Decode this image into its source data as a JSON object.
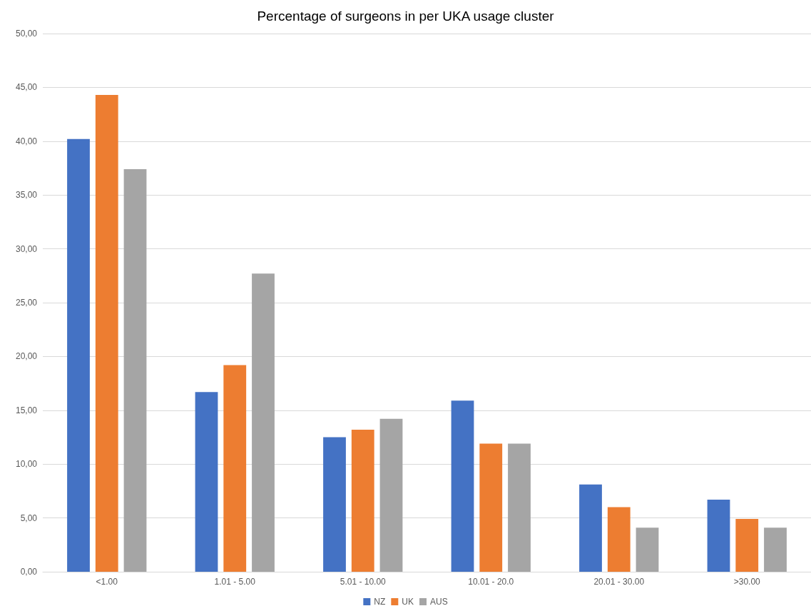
{
  "chart_data": {
    "type": "bar",
    "title": "Percentage of surgeons in per UKA usage cluster",
    "categories": [
      "<1.00",
      "1.01 - 5.00",
      "5.01 - 10.00",
      "10.01 - 20.0",
      "20.01 - 30.00",
      ">30.00"
    ],
    "series": [
      {
        "name": "NZ",
        "color": "#4472c4",
        "values": [
          40.2,
          16.7,
          12.5,
          15.9,
          8.1,
          6.7
        ]
      },
      {
        "name": "UK",
        "color": "#ed7d31",
        "values": [
          44.3,
          19.2,
          13.2,
          11.9,
          6.0,
          4.9
        ]
      },
      {
        "name": "AUS",
        "color": "#a5a5a5",
        "values": [
          37.4,
          27.7,
          14.2,
          11.9,
          4.1,
          4.1
        ]
      }
    ],
    "ylim": [
      0,
      50
    ],
    "yticks": [
      {
        "value": 0,
        "label": "0,00"
      },
      {
        "value": 5,
        "label": "5,00"
      },
      {
        "value": 10,
        "label": "10,00"
      },
      {
        "value": 15,
        "label": "15,00"
      },
      {
        "value": 20,
        "label": "20,00"
      },
      {
        "value": 25,
        "label": "25,00"
      },
      {
        "value": 30,
        "label": "30,00"
      },
      {
        "value": 35,
        "label": "35,00"
      },
      {
        "value": 40,
        "label": "40,00"
      },
      {
        "value": 45,
        "label": "45,00"
      },
      {
        "value": 50,
        "label": "50,00"
      }
    ],
    "grid": "y",
    "legend": "bottom"
  }
}
